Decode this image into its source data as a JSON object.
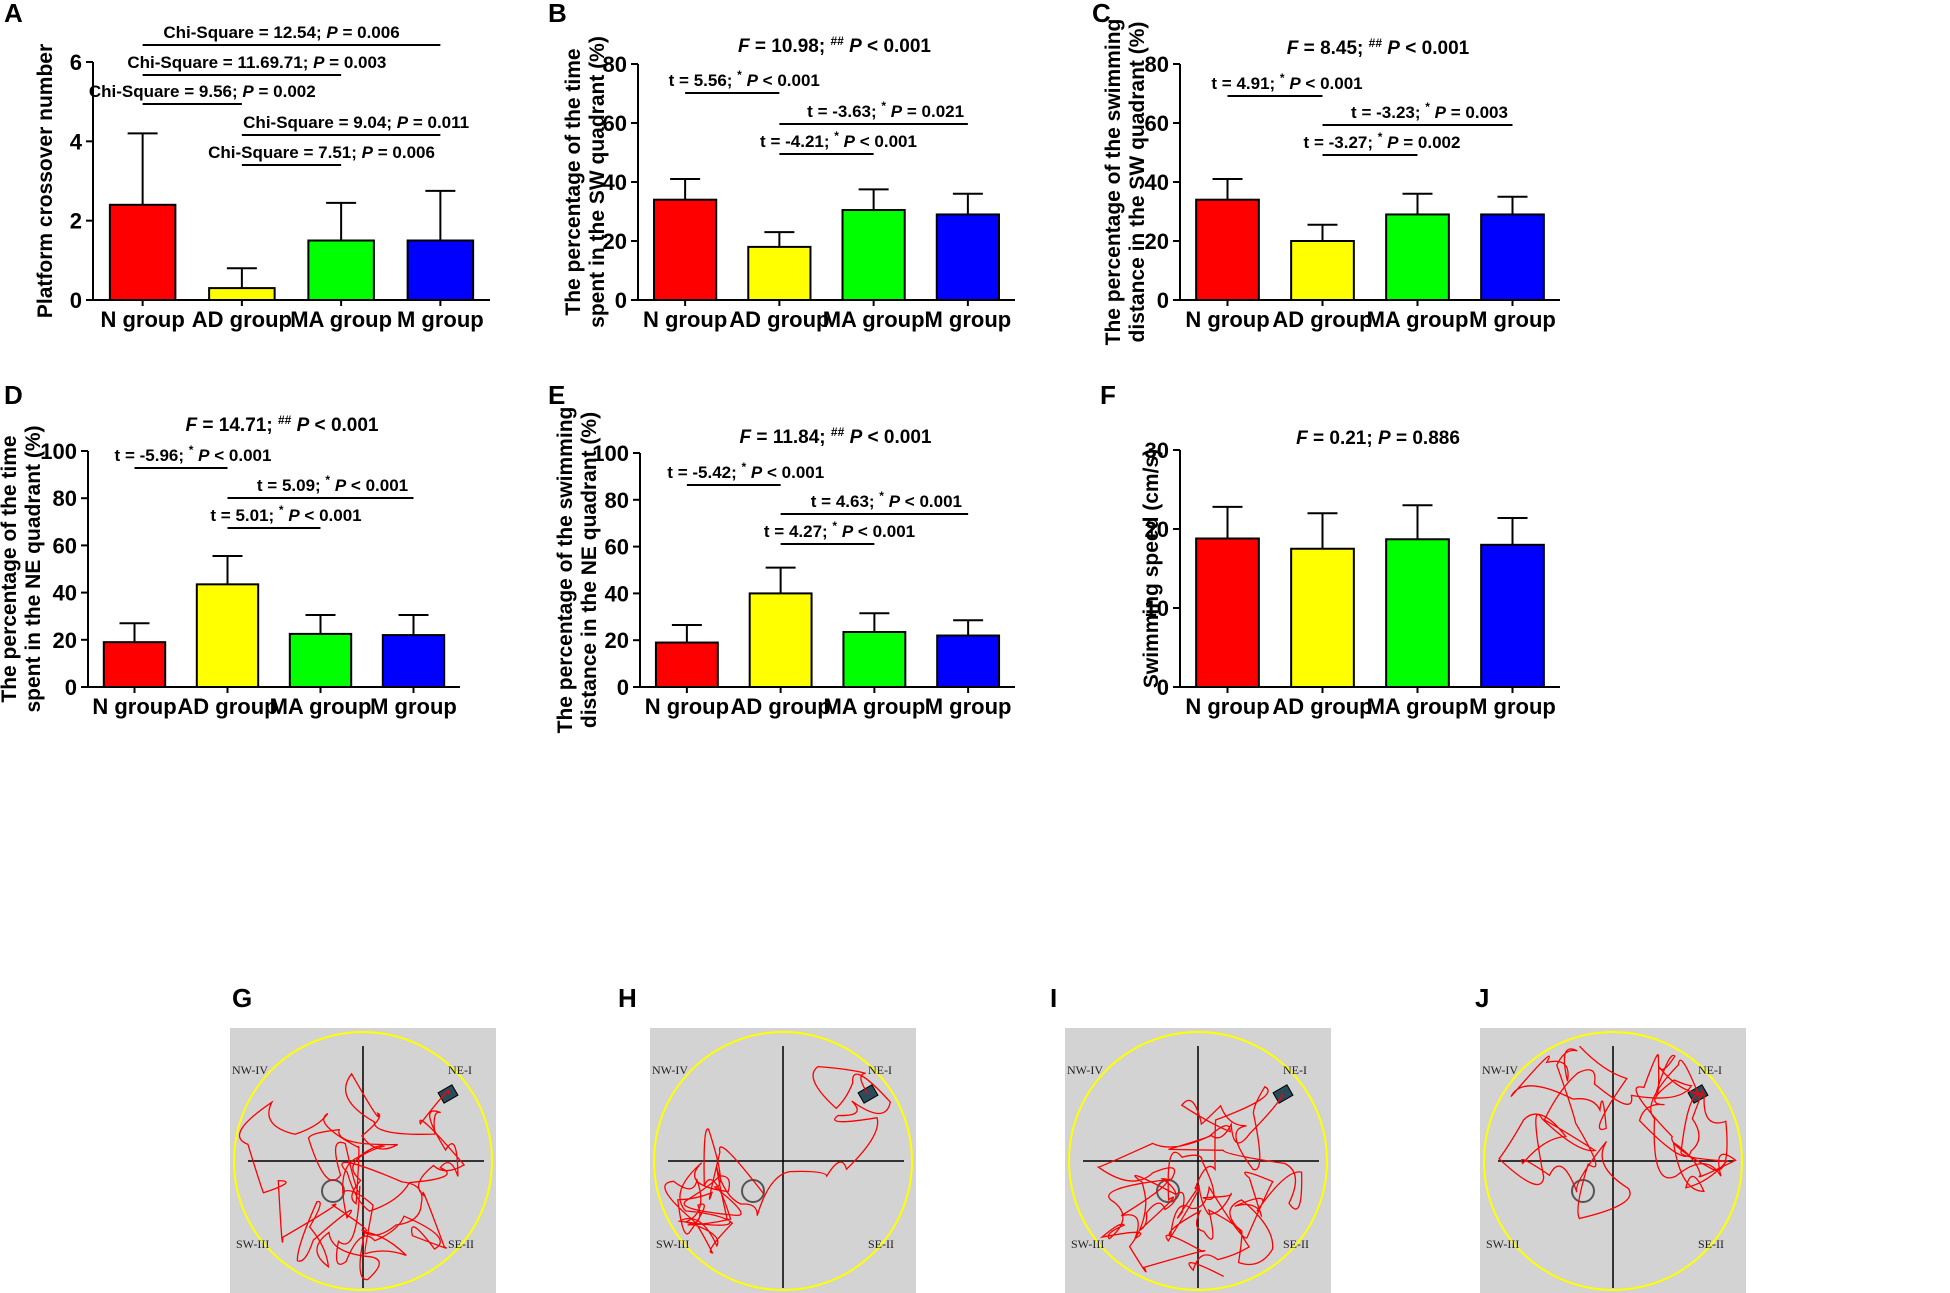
{
  "colors": {
    "N": "#ff0000",
    "AD": "#ffff00",
    "MA": "#00ff00",
    "M": "#0000ff",
    "track": "#ff0000",
    "pool": "#ffff00",
    "arena": "#d3d3d3"
  },
  "chart_data": [
    {
      "id": "A",
      "type": "bar",
      "letter": "A",
      "categories": [
        "N group",
        "AD group",
        "MA group",
        "M group"
      ],
      "values": [
        2.4,
        0.3,
        1.5,
        1.5
      ],
      "errors": [
        1.8,
        0.5,
        0.95,
        1.25
      ],
      "ylabel": [
        "Platform crossover number"
      ],
      "ylim": [
        0,
        6
      ],
      "yticks": [
        0,
        2,
        4,
        6
      ],
      "headline": "",
      "comparisons": [
        {
          "from": 0,
          "to": 3,
          "label": "Chi-Square = 12.54;  P = 0.006"
        },
        {
          "from": 0,
          "to": 2,
          "label": "Chi-Square = 11.69.71;  P = 0.003"
        },
        {
          "from": 0,
          "to": 1,
          "label": "Chi-Square = 9.56;  P = 0.002"
        },
        {
          "from": 1,
          "to": 3,
          "label": "Chi-Square = 9.04;  P = 0.011"
        },
        {
          "from": 1,
          "to": 2,
          "label": "Chi-Square = 7.51;  P = 0.006"
        }
      ]
    },
    {
      "id": "B",
      "type": "bar",
      "letter": "B",
      "categories": [
        "N group",
        "AD group",
        "MA group",
        "M group"
      ],
      "values": [
        34,
        18,
        30.5,
        29
      ],
      "errors": [
        7,
        5,
        7,
        7
      ],
      "ylabel": [
        "The percentage of the time",
        "spent in the SW quadrant (%)"
      ],
      "ylim": [
        0,
        80
      ],
      "yticks": [
        0,
        20,
        40,
        60,
        80
      ],
      "headline": "F = 10.98; ## P < 0.001",
      "comparisons": [
        {
          "from": 0,
          "to": 1,
          "label": "t = 5.56; * P < 0.001"
        },
        {
          "from": 1,
          "to": 3,
          "label": "t = -3.63; * P = 0.021"
        },
        {
          "from": 1,
          "to": 2,
          "label": "t = -4.21; * P < 0.001"
        }
      ]
    },
    {
      "id": "C",
      "type": "bar",
      "letter": "C",
      "categories": [
        "N group",
        "AD group",
        "MA group",
        "M group"
      ],
      "values": [
        34,
        20,
        29,
        29
      ],
      "errors": [
        7,
        5.5,
        7,
        6
      ],
      "ylabel": [
        "The percentage of the swimming",
        "distance in the SW quadrant (%)"
      ],
      "ylim": [
        0,
        80
      ],
      "yticks": [
        0,
        20,
        40,
        60,
        80
      ],
      "headline": "F = 8.45; ## P < 0.001",
      "comparisons": [
        {
          "from": 0,
          "to": 1,
          "label": "t = 4.91; * P < 0.001"
        },
        {
          "from": 1,
          "to": 3,
          "label": "t = -3.23; * P = 0.003"
        },
        {
          "from": 1,
          "to": 2,
          "label": "t = -3.27; * P = 0.002"
        }
      ]
    },
    {
      "id": "D",
      "type": "bar",
      "letter": "D",
      "categories": [
        "N group",
        "AD group",
        "MA group",
        "M group"
      ],
      "values": [
        19,
        43.5,
        22.5,
        22
      ],
      "errors": [
        8,
        12,
        8,
        8.5
      ],
      "ylabel": [
        "The percentage of the time",
        "spent in the NE quadrant (%)"
      ],
      "ylim": [
        0,
        100
      ],
      "yticks": [
        0,
        20,
        40,
        60,
        80,
        100
      ],
      "headline": "F = 14.71; ## P < 0.001",
      "comparisons": [
        {
          "from": 0,
          "to": 1,
          "label": "t = -5.96; * P < 0.001"
        },
        {
          "from": 1,
          "to": 3,
          "label": "t = 5.09; * P < 0.001"
        },
        {
          "from": 1,
          "to": 2,
          "label": "t = 5.01; * P < 0.001"
        }
      ]
    },
    {
      "id": "E",
      "type": "bar",
      "letter": "E",
      "categories": [
        "N group",
        "AD group",
        "MA group",
        "M group"
      ],
      "values": [
        19,
        40,
        23.5,
        22
      ],
      "errors": [
        7.5,
        11,
        8,
        6.5
      ],
      "ylabel": [
        "The percentage of the swimming",
        "distance  in the NE quadrant (%)"
      ],
      "ylim": [
        0,
        100
      ],
      "yticks": [
        0,
        20,
        40,
        60,
        80,
        100
      ],
      "headline": "F = 11.84; ## P < 0.001",
      "comparisons": [
        {
          "from": 0,
          "to": 1,
          "label": "t = -5.42; * P < 0.001"
        },
        {
          "from": 1,
          "to": 3,
          "label": "t = 4.63; * P < 0.001"
        },
        {
          "from": 1,
          "to": 2,
          "label": "t = 4.27; * P < 0.001"
        }
      ]
    },
    {
      "id": "F",
      "type": "bar",
      "letter": "F",
      "categories": [
        "N group",
        "AD group",
        "MA group",
        "M group"
      ],
      "values": [
        18.8,
        17.5,
        18.7,
        18
      ],
      "errors": [
        4,
        4.5,
        4.3,
        3.4
      ],
      "ylabel": [
        "Swimming speed (cm/s)"
      ],
      "ylim": [
        0,
        30
      ],
      "yticks": [
        0,
        10,
        20,
        30
      ],
      "headline": "F = 0.21; P = 0.886",
      "comparisons": []
    }
  ],
  "track_panels": [
    {
      "letter": "G",
      "quadrants": [
        "NW-IV",
        "NE-I",
        "SW-III",
        "SE-II"
      ]
    },
    {
      "letter": "H",
      "quadrants": [
        "NW-IV",
        "NE-I",
        "SW-III",
        "SE-II"
      ]
    },
    {
      "letter": "I",
      "quadrants": [
        "NW-IV",
        "NE-I",
        "SW-III",
        "SE-II"
      ]
    },
    {
      "letter": "J",
      "quadrants": [
        "NW-IV",
        "NE-I",
        "SW-III",
        "SE-II"
      ]
    }
  ]
}
